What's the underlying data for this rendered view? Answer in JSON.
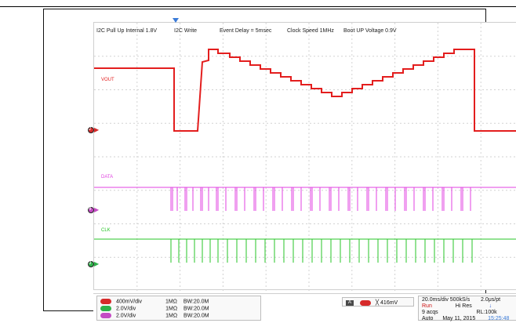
{
  "top_notes": [
    "I2C Pull Up Internal 1.8V",
    "I2C Write",
    "Event Delay = 5msec",
    "Clock Speed 1MHz",
    "Boot UP Voltage 0.9V"
  ],
  "trace_labels": {
    "vout": "VOUT",
    "data": "DATA",
    "clk": "CLK"
  },
  "channel_markers": {
    "ch2": "2",
    "ch4": "4",
    "ch3": "3"
  },
  "bottom": {
    "channels": [
      {
        "badge": "C2",
        "scale": "400mV/div",
        "impedance": "1MΩ",
        "bw": "BW:20.0M",
        "color": "#d62a2a"
      },
      {
        "badge": "C3",
        "scale": "2.0V/div",
        "impedance": "1MΩ",
        "bw": "BW:20.0M",
        "color": "#2fb14a"
      },
      {
        "badge": "C4",
        "scale": "2.0V/div",
        "impedance": "1MΩ",
        "bw": "BW:20.0M",
        "color": "#c44bc4"
      }
    ],
    "cursor": {
      "label": "A",
      "badge": "C2",
      "value": "416mV"
    },
    "timebase": {
      "line1": "20.0ms/div 500kS/s",
      "line1_right": "2.0μs/pt",
      "line2_left": "Run",
      "line2_mid": "Hi Res",
      "line3_left": "9 acqs",
      "line3_right": "RL:100k",
      "line4_left": "Auto",
      "line4_mid": "May 11, 2015",
      "line4_right": "15:25:48"
    }
  },
  "colors": {
    "vout": "#e31e1e",
    "data": "#e040e0",
    "clk": "#27c427",
    "grid": "#d2d2d2",
    "trigger": "#3b7bd8"
  },
  "icons": {
    "trigger_pointer": "trigger-pointer-icon",
    "right_marker": "right-marker-icon",
    "bottom_arrow": "down-arrow-icon",
    "cursor_icon": "cursor-x-icon"
  }
}
